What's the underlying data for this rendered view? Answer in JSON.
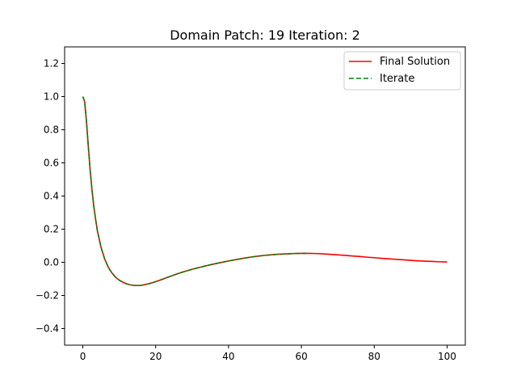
{
  "chart_data": {
    "type": "line",
    "title": "Domain Patch: 19 Iteration: 2",
    "xlabel": "",
    "ylabel": "",
    "xlim": [
      -5,
      105
    ],
    "ylim": [
      -0.5,
      1.3
    ],
    "xticks": [
      0,
      20,
      40,
      60,
      80,
      100
    ],
    "yticks": [
      -0.4,
      -0.2,
      0.0,
      0.2,
      0.4,
      0.6,
      0.8,
      1.0,
      1.2
    ],
    "xtick_labels": [
      "0",
      "20",
      "40",
      "60",
      "80",
      "100"
    ],
    "ytick_labels": [
      "−0.4",
      "−0.2",
      "0.0",
      "0.2",
      "0.4",
      "0.6",
      "0.8",
      "1.0",
      "1.2"
    ],
    "grid": false,
    "legend_position": "upper right",
    "series": [
      {
        "name": "Final Solution",
        "color": "#ff0000",
        "style": "solid",
        "x": [
          0,
          0.5,
          1,
          1.5,
          2,
          2.5,
          3,
          3.5,
          4,
          5,
          6,
          7,
          8,
          9,
          10,
          11,
          12,
          13,
          14,
          15,
          16,
          17,
          18,
          19,
          20,
          22,
          24,
          26,
          28,
          30,
          32,
          34,
          36,
          38,
          40,
          42,
          44,
          46,
          48,
          50,
          52,
          54,
          56,
          58,
          60,
          62,
          64,
          66,
          68,
          70,
          72,
          74,
          76,
          78,
          80,
          82,
          84,
          86,
          88,
          90,
          92,
          94,
          96,
          98,
          100
        ],
        "y": [
          1.0,
          0.97,
          0.85,
          0.7,
          0.56,
          0.44,
          0.34,
          0.26,
          0.19,
          0.09,
          0.02,
          -0.03,
          -0.065,
          -0.09,
          -0.108,
          -0.12,
          -0.13,
          -0.136,
          -0.139,
          -0.14,
          -0.139,
          -0.135,
          -0.13,
          -0.124,
          -0.117,
          -0.101,
          -0.085,
          -0.069,
          -0.055,
          -0.042,
          -0.031,
          -0.02,
          -0.01,
          -0.001,
          0.008,
          0.016,
          0.024,
          0.031,
          0.037,
          0.042,
          0.046,
          0.049,
          0.051,
          0.053,
          0.054,
          0.054,
          0.053,
          0.051,
          0.048,
          0.045,
          0.042,
          0.038,
          0.035,
          0.031,
          0.028,
          0.024,
          0.021,
          0.018,
          0.015,
          0.012,
          0.009,
          0.007,
          0.005,
          0.003,
          0.002
        ]
      },
      {
        "name": "Iterate",
        "color": "#008000",
        "style": "dashed",
        "x": [
          0,
          0.5,
          1,
          1.5,
          2,
          2.5,
          3,
          3.5,
          4,
          5,
          6,
          7,
          8,
          9,
          10,
          11,
          12,
          13,
          14,
          15,
          16,
          17,
          18,
          19,
          20,
          22,
          24,
          26,
          28,
          30,
          32,
          34,
          36,
          38,
          40,
          42,
          44,
          46,
          48,
          50,
          52,
          54,
          56,
          58,
          60,
          62
        ],
        "y": [
          1.0,
          0.97,
          0.85,
          0.7,
          0.56,
          0.44,
          0.34,
          0.26,
          0.19,
          0.09,
          0.02,
          -0.03,
          -0.065,
          -0.09,
          -0.108,
          -0.12,
          -0.13,
          -0.136,
          -0.139,
          -0.14,
          -0.139,
          -0.135,
          -0.13,
          -0.124,
          -0.117,
          -0.101,
          -0.085,
          -0.069,
          -0.055,
          -0.042,
          -0.031,
          -0.02,
          -0.01,
          -0.001,
          0.008,
          0.016,
          0.024,
          0.031,
          0.037,
          0.042,
          0.046,
          0.049,
          0.051,
          0.053,
          0.054,
          0.054
        ]
      }
    ]
  }
}
